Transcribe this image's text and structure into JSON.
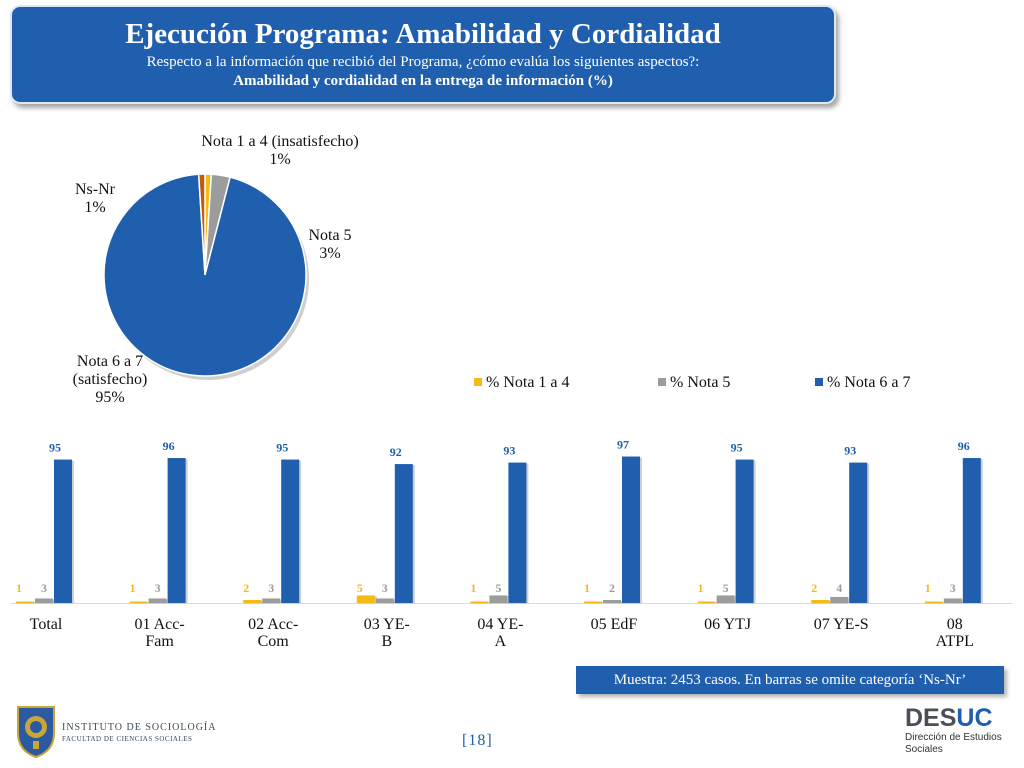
{
  "header": {
    "title": "Ejecución Programa: Amabilidad y Cordialidad",
    "subtitle": "Respecto a la información que recibió del Programa, ¿cómo evalúa los siguientes aspectos?:",
    "subtitle2": "Amabilidad y cordialidad en la entrega de información (%)"
  },
  "colors": {
    "header_bg": "#1f5fae",
    "nota_1_4": "#f5b918",
    "nota_5": "#9c9c9c",
    "nota_6_7": "#1f5fae",
    "ns_nr": "#c05a12"
  },
  "chart_data": [
    {
      "type": "pie",
      "labels": [
        "Nota 1 a 4 (insatisfecho)",
        "Nota 5",
        "Nota 6 a 7 (satisfecho)",
        "Ns-Nr"
      ],
      "values": [
        1,
        3,
        95,
        1
      ],
      "value_labels": [
        "1%",
        "3%",
        "95%",
        "1%"
      ],
      "colors": [
        "#f5b918",
        "#9c9c9c",
        "#1f5fae",
        "#c05a12"
      ]
    },
    {
      "type": "bar",
      "categories": [
        "Total",
        "01 Acc-Fam",
        "02 Acc-Com",
        "03 YE-B",
        "04 YE-A",
        "05 EdF",
        "06 YTJ",
        "07 YE-S",
        "08 ATPL"
      ],
      "category_lines": [
        [
          "Total"
        ],
        [
          "01 Acc-",
          "Fam"
        ],
        [
          "02 Acc-",
          "Com"
        ],
        [
          "03 YE-",
          "B"
        ],
        [
          "04 YE-",
          "A"
        ],
        [
          "05 EdF"
        ],
        [
          "06 YTJ"
        ],
        [
          "07 YE-S"
        ],
        [
          "08",
          "ATPL"
        ]
      ],
      "series": [
        {
          "name": "% Nota 1 a 4",
          "values": [
            1,
            1,
            2,
            5,
            1,
            1,
            1,
            2,
            1
          ],
          "color": "#f5b918"
        },
        {
          "name": "% Nota 5",
          "values": [
            3,
            3,
            3,
            3,
            5,
            2,
            5,
            4,
            3
          ],
          "color": "#9c9c9c"
        },
        {
          "name": "% Nota 6 a 7",
          "values": [
            95,
            96,
            95,
            92,
            93,
            97,
            95,
            93,
            96
          ],
          "color": "#1f5fae"
        }
      ],
      "ylim": [
        0,
        100
      ],
      "legend_position": "top"
    }
  ],
  "footer": {
    "note": "Muestra: 2453 casos. En barras se omite categoría ‘Ns-Nr’",
    "page_number": "[18]",
    "institute_line1": "INSTITUTO DE SOCIOLOGÍA",
    "institute_line2": "FACULTAD DE CIENCIAS SOCIALES",
    "desuc_part1": "DES",
    "desuc_part2": "UC",
    "desuc_line1": "Dirección de Estudios",
    "desuc_line2": "Sociales"
  }
}
